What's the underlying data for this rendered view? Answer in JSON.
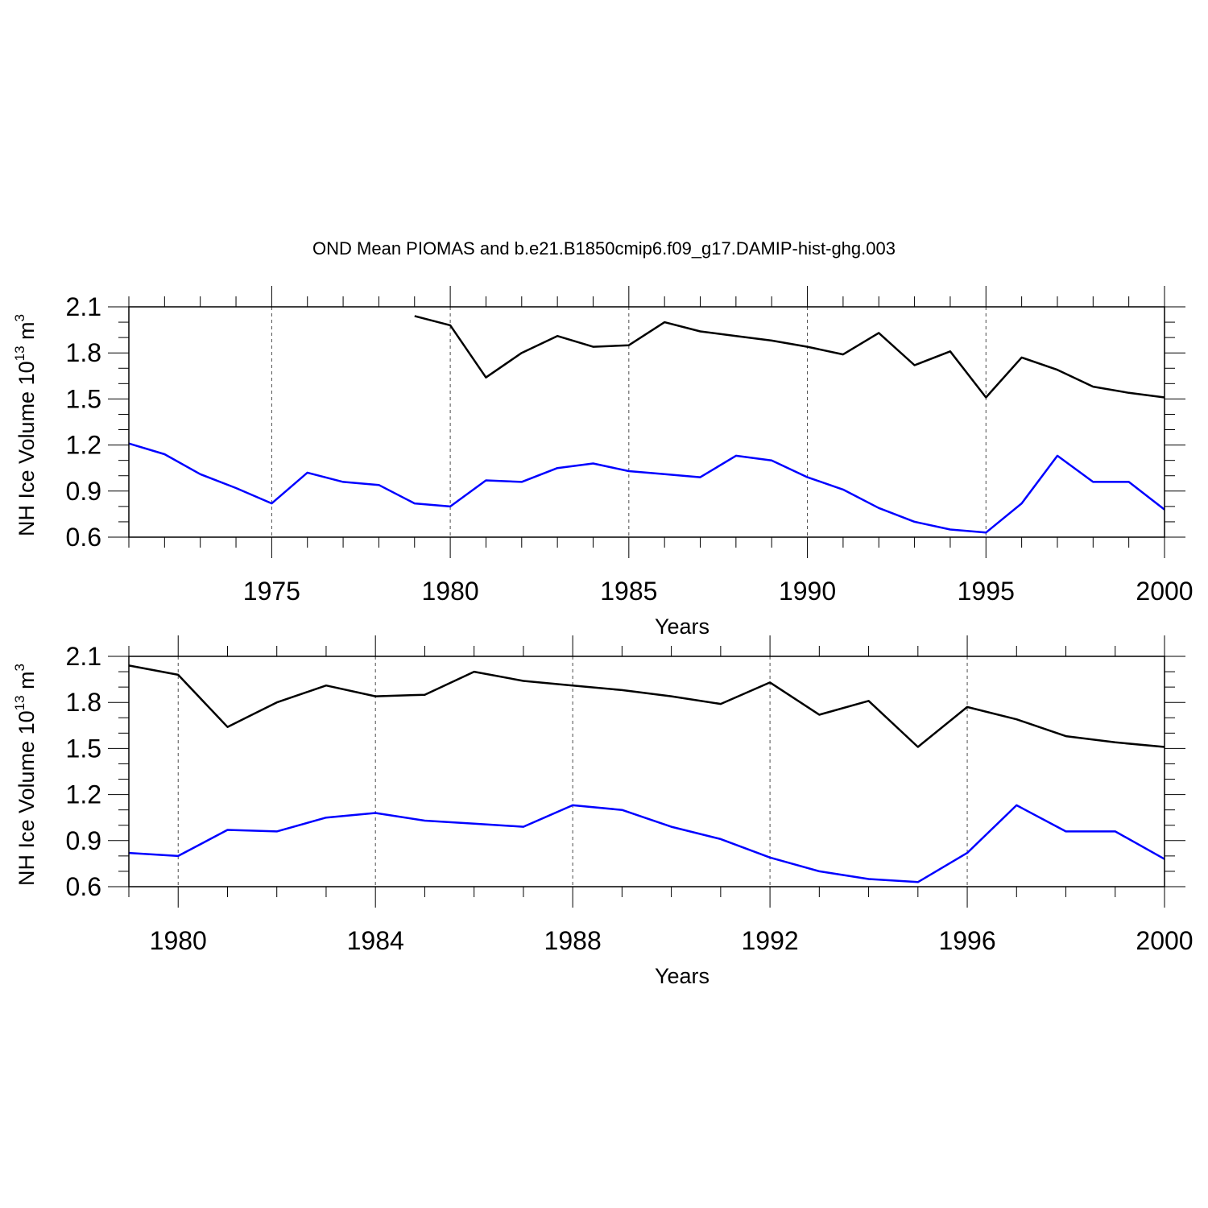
{
  "title": "OND Mean PIOMAS and b.e21.B1850cmip6.f09_g17.DAMIP-hist-ghg.003",
  "colors": {
    "piomas": "#000000",
    "model": "#0000ff",
    "axis": "#000000",
    "grid": "#000000"
  },
  "chart_data": [
    {
      "type": "line",
      "xlabel": "Years",
      "ylabel": "NH Ice Volume 10",
      "ylabel_exp": "13",
      "ylabel_unit": " m",
      "ylabel_unit_exp": "3",
      "xlim": [
        1971,
        2000
      ],
      "ylim": [
        0.6,
        2.1
      ],
      "yticks": [
        "0.6",
        "0.9",
        "1.2",
        "1.5",
        "1.8",
        "2.1"
      ],
      "yticks_values": [
        0.6,
        0.9,
        1.2,
        1.5,
        1.8,
        2.1
      ],
      "xticks": [
        "1975",
        "1980",
        "1985",
        "1990",
        "1995",
        "2000"
      ],
      "xticks_values": [
        1975,
        1980,
        1985,
        1990,
        1995,
        2000
      ],
      "grid": "vertical dashed at major x ticks",
      "series": [
        {
          "name": "PIOMAS",
          "color": "#000000",
          "x": [
            1979,
            1980,
            1981,
            1982,
            1983,
            1984,
            1985,
            1986,
            1987,
            1988,
            1989,
            1990,
            1991,
            1992,
            1993,
            1994,
            1995,
            1996,
            1997,
            1998,
            1999,
            2000
          ],
          "values": [
            2.04,
            1.98,
            1.64,
            1.8,
            1.91,
            1.84,
            1.85,
            2.0,
            1.94,
            1.91,
            1.88,
            1.84,
            1.79,
            1.93,
            1.72,
            1.81,
            1.51,
            1.77,
            1.69,
            1.58,
            1.54,
            1.51
          ]
        },
        {
          "name": "b.e21.B1850cmip6.f09_g17.DAMIP-hist-ghg.003",
          "color": "#0000ff",
          "x": [
            1971,
            1972,
            1973,
            1974,
            1975,
            1976,
            1977,
            1978,
            1979,
            1980,
            1981,
            1982,
            1983,
            1984,
            1985,
            1986,
            1987,
            1988,
            1989,
            1990,
            1991,
            1992,
            1993,
            1994,
            1995,
            1996,
            1997,
            1998,
            1999,
            2000
          ],
          "values": [
            1.21,
            1.14,
            1.01,
            0.92,
            0.82,
            1.02,
            0.96,
            0.94,
            0.82,
            0.8,
            0.97,
            0.96,
            1.05,
            1.08,
            1.03,
            1.01,
            0.99,
            1.13,
            1.1,
            0.99,
            0.91,
            0.79,
            0.7,
            0.65,
            0.63,
            0.82,
            1.13,
            0.96,
            0.96,
            0.78
          ]
        }
      ]
    },
    {
      "type": "line",
      "xlabel": "Years",
      "ylabel": "NH Ice Volume 10",
      "ylabel_exp": "13",
      "ylabel_unit": " m",
      "ylabel_unit_exp": "3",
      "xlim": [
        1979,
        2000
      ],
      "ylim": [
        0.6,
        2.1
      ],
      "yticks": [
        "0.6",
        "0.9",
        "1.2",
        "1.5",
        "1.8",
        "2.1"
      ],
      "yticks_values": [
        0.6,
        0.9,
        1.2,
        1.5,
        1.8,
        2.1
      ],
      "xticks": [
        "1980",
        "1984",
        "1988",
        "1992",
        "1996",
        "2000"
      ],
      "xticks_values": [
        1980,
        1984,
        1988,
        1992,
        1996,
        2000
      ],
      "grid": "vertical dashed at major x ticks",
      "series": [
        {
          "name": "PIOMAS",
          "color": "#000000",
          "x": [
            1979,
            1980,
            1981,
            1982,
            1983,
            1984,
            1985,
            1986,
            1987,
            1988,
            1989,
            1990,
            1991,
            1992,
            1993,
            1994,
            1995,
            1996,
            1997,
            1998,
            1999,
            2000
          ],
          "values": [
            2.04,
            1.98,
            1.64,
            1.8,
            1.91,
            1.84,
            1.85,
            2.0,
            1.94,
            1.91,
            1.88,
            1.84,
            1.79,
            1.93,
            1.72,
            1.81,
            1.51,
            1.77,
            1.69,
            1.58,
            1.54,
            1.51
          ]
        },
        {
          "name": "b.e21.B1850cmip6.f09_g17.DAMIP-hist-ghg.003",
          "color": "#0000ff",
          "x": [
            1979,
            1980,
            1981,
            1982,
            1983,
            1984,
            1985,
            1986,
            1987,
            1988,
            1989,
            1990,
            1991,
            1992,
            1993,
            1994,
            1995,
            1996,
            1997,
            1998,
            1999,
            2000
          ],
          "values": [
            0.82,
            0.8,
            0.97,
            0.96,
            1.05,
            1.08,
            1.03,
            1.01,
            0.99,
            1.13,
            1.1,
            0.99,
            0.91,
            0.79,
            0.7,
            0.65,
            0.63,
            0.82,
            1.13,
            0.96,
            0.96,
            0.78
          ]
        }
      ]
    }
  ]
}
